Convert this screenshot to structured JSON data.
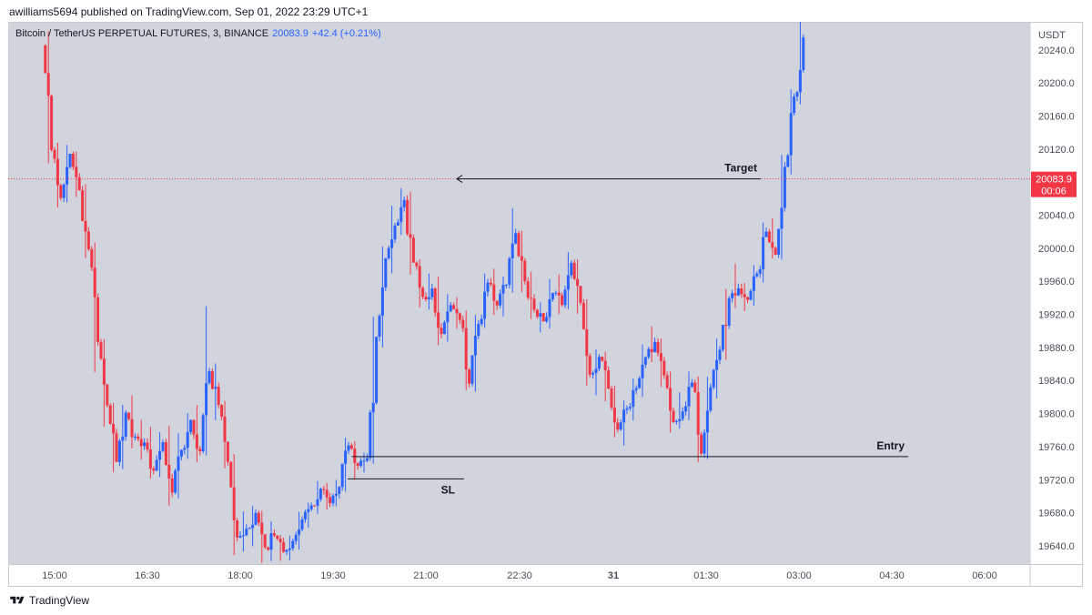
{
  "header": {
    "published_text": "awilliams5694 published on TradingView.com, Sep 01, 2022 23:29 UTC+1"
  },
  "legend": {
    "symbol_text": "Bitcoin / TetherUS PERPETUAL FUTURES, 3, BINANCE",
    "price": "20083.9",
    "change": "+42.4 (+0.21%)"
  },
  "footer": {
    "brand": "TradingView"
  },
  "colors": {
    "up": "#2962ff",
    "down": "#f23645",
    "plot_bg": "#d1d4dc",
    "current_price_tag": "#f23645"
  },
  "chart_data": {
    "type": "candlestick",
    "currency_label": "USDT",
    "x_ticks": [
      "15:00",
      "16:30",
      "18:00",
      "19:30",
      "21:00",
      "22:30",
      "31",
      "01:30",
      "03:00",
      "04:30",
      "06:00"
    ],
    "y_ticks": [
      19640.0,
      19680.0,
      19720.0,
      19760.0,
      19800.0,
      19840.0,
      19880.0,
      19920.0,
      19960.0,
      20000.0,
      20040.0,
      20080.0,
      20120.0,
      20160.0,
      20200.0,
      20240.0
    ],
    "ylim": [
      19619,
      20274
    ],
    "current_price": {
      "value": "20083.9",
      "countdown": "00:06"
    },
    "annotations": {
      "target": {
        "label": "Target",
        "price": 20084,
        "start": "03:00",
        "end": "21:30"
      },
      "entry": {
        "label": "Entry",
        "price": 19748,
        "start": "19:48",
        "end": "04:30"
      },
      "sl": {
        "label": "SL",
        "price": 19721,
        "start": "19:30",
        "end": "21:30"
      }
    },
    "interval": "3m",
    "candle_count": 216,
    "series": [
      {
        "x": "14:51",
        "o": 20245.4,
        "h": 20262.1,
        "l": 20102.8,
        "c": 20119.0
      },
      {
        "x": "15:00",
        "o": 20119.0,
        "h": 20127.7,
        "l": 20049.4,
        "c": 20060.9
      },
      {
        "x": "15:09",
        "o": 20060.9,
        "h": 20125.3,
        "l": 20055.4,
        "c": 20114.3
      },
      {
        "x": "15:18",
        "o": 20114.3,
        "h": 20117.0,
        "l": 20061.9,
        "c": 20070.2
      },
      {
        "x": "15:27",
        "o": 20070.2,
        "h": 20077.4,
        "l": 19988.3,
        "c": 19998.9
      },
      {
        "x": "15:36",
        "o": 19998.9,
        "h": 20007.1,
        "l": 19850.0,
        "c": 19886.6
      },
      {
        "x": "15:45",
        "o": 19886.6,
        "h": 19890.1,
        "l": 19784.3,
        "c": 19809.8
      },
      {
        "x": "15:54",
        "o": 19809.8,
        "h": 19812.8,
        "l": 19729.1,
        "c": 19741.5
      },
      {
        "x": "16:03",
        "o": 19741.5,
        "h": 19810.4,
        "l": 19732.8,
        "c": 19801.1
      },
      {
        "x": "16:12",
        "o": 19801.1,
        "h": 19822.1,
        "l": 19757.8,
        "c": 19772.1
      },
      {
        "x": "16:21",
        "o": 19772.1,
        "h": 19792.3,
        "l": 19744.2,
        "c": 19764.9
      },
      {
        "x": "16:30",
        "o": 19764.9,
        "h": 19784.1,
        "l": 19721.5,
        "c": 19730.9
      },
      {
        "x": "16:39",
        "o": 19730.9,
        "h": 19777.6,
        "l": 19723.1,
        "c": 19765.3
      },
      {
        "x": "16:48",
        "o": 19765.3,
        "h": 19785.3,
        "l": 19688.7,
        "c": 19704.4
      },
      {
        "x": "16:57",
        "o": 19704.4,
        "h": 19776.2,
        "l": 19697.5,
        "c": 19756.1
      },
      {
        "x": "17:06",
        "o": 19756.1,
        "h": 19800.6,
        "l": 19745.2,
        "c": 19792.2
      },
      {
        "x": "17:15",
        "o": 19792.2,
        "h": 19810.4,
        "l": 19741.0,
        "c": 19754.4
      },
      {
        "x": "17:24",
        "o": 19754.4,
        "h": 19929.9,
        "l": 19749.3,
        "c": 19851.4
      },
      {
        "x": "17:33",
        "o": 19851.4,
        "h": 19860.7,
        "l": 19792.1,
        "c": 19810.3
      },
      {
        "x": "17:42",
        "o": 19810.3,
        "h": 19815.3,
        "l": 19733.8,
        "c": 19741.6
      },
      {
        "x": "17:51",
        "o": 19741.6,
        "h": 19750.9,
        "l": 19628.8,
        "c": 19650.1
      },
      {
        "x": "18:00",
        "o": 19650.1,
        "h": 19681.5,
        "l": 19633.0,
        "c": 19660.6
      },
      {
        "x": "18:09",
        "o": 19660.6,
        "h": 19688.2,
        "l": 19639.5,
        "c": 19679.8
      },
      {
        "x": "18:18",
        "o": 19679.8,
        "h": 19682.4,
        "l": 19619.4,
        "c": 19638.1
      },
      {
        "x": "18:27",
        "o": 19638.1,
        "h": 19669.4,
        "l": 19621.5,
        "c": 19652.3
      },
      {
        "x": "18:36",
        "o": 19652.3,
        "h": 19652.9,
        "l": 19621.9,
        "c": 19632.7
      },
      {
        "x": "18:45",
        "o": 19632.7,
        "h": 19652.4,
        "l": 19622.5,
        "c": 19645.8
      },
      {
        "x": "18:54",
        "o": 19645.8,
        "h": 19681.2,
        "l": 19635.5,
        "c": 19671.8
      },
      {
        "x": "19:03",
        "o": 19671.8,
        "h": 19692.3,
        "l": 19661.6,
        "c": 19688.8
      },
      {
        "x": "19:12",
        "o": 19688.8,
        "h": 19718.4,
        "l": 19678.5,
        "c": 19709.0
      },
      {
        "x": "19:21",
        "o": 19709.0,
        "h": 19716.1,
        "l": 19683.7,
        "c": 19691.5
      },
      {
        "x": "19:30",
        "o": 19691.5,
        "h": 19719.6,
        "l": 19687.8,
        "c": 19711.2
      },
      {
        "x": "19:39",
        "o": 19711.2,
        "h": 19770.9,
        "l": 19705.5,
        "c": 19761.6
      },
      {
        "x": "19:48",
        "o": 19761.6,
        "h": 19766.6,
        "l": 19719.8,
        "c": 19736.7
      },
      {
        "x": "19:57",
        "o": 19736.7,
        "h": 19752.7,
        "l": 19728.8,
        "c": 19746.1
      },
      {
        "x": "20:06",
        "o": 19746.1,
        "h": 19917.2,
        "l": 19739.2,
        "c": 19892.9
      },
      {
        "x": "20:15",
        "o": 19892.9,
        "h": 20002.3,
        "l": 19880.1,
        "c": 19987.8
      },
      {
        "x": "20:24",
        "o": 19987.8,
        "h": 20051.6,
        "l": 19969.7,
        "c": 20027.5
      },
      {
        "x": "20:33",
        "o": 20027.5,
        "h": 20072.7,
        "l": 20016.1,
        "c": 20058.4
      },
      {
        "x": "20:42",
        "o": 20058.4,
        "h": 20068.5,
        "l": 19967.9,
        "c": 19982.6
      },
      {
        "x": "20:51",
        "o": 19982.6,
        "h": 19986.7,
        "l": 19928.5,
        "c": 19941.4
      },
      {
        "x": "21:00",
        "o": 19941.4,
        "h": 19969.4,
        "l": 19925.8,
        "c": 19951.3
      },
      {
        "x": "21:09",
        "o": 19951.3,
        "h": 19965.7,
        "l": 19882.9,
        "c": 19896.3
      },
      {
        "x": "21:18",
        "o": 19896.3,
        "h": 19944.8,
        "l": 19887.0,
        "c": 19931.2
      },
      {
        "x": "21:27",
        "o": 19931.2,
        "h": 19941.0,
        "l": 19902.5,
        "c": 19913.4
      },
      {
        "x": "21:36",
        "o": 19913.4,
        "h": 19924.5,
        "l": 19828.4,
        "c": 19836.2
      },
      {
        "x": "21:45",
        "o": 19836.2,
        "h": 19919.4,
        "l": 19826.6,
        "c": 19908.5
      },
      {
        "x": "21:54",
        "o": 19908.5,
        "h": 19969.3,
        "l": 19903.7,
        "c": 19958.3
      },
      {
        "x": "22:03",
        "o": 19958.3,
        "h": 19975.1,
        "l": 19919.4,
        "c": 19930.9
      },
      {
        "x": "22:12",
        "o": 19930.9,
        "h": 19965.8,
        "l": 19917.4,
        "c": 19956.0
      },
      {
        "x": "22:21",
        "o": 19956.0,
        "h": 20048.3,
        "l": 19946.3,
        "c": 20018.3
      },
      {
        "x": "22:30",
        "o": 20018.3,
        "h": 20021.1,
        "l": 19946.7,
        "c": 19960.2
      },
      {
        "x": "22:39",
        "o": 19960.2,
        "h": 19971.7,
        "l": 19914.4,
        "c": 19925.5
      },
      {
        "x": "22:48",
        "o": 19925.5,
        "h": 19934.8,
        "l": 19898.3,
        "c": 19911.4
      },
      {
        "x": "22:57",
        "o": 19911.4,
        "h": 19963.0,
        "l": 19902.7,
        "c": 19945.7
      },
      {
        "x": "23:06",
        "o": 19945.7,
        "h": 19968.5,
        "l": 19920.2,
        "c": 19931.3
      },
      {
        "x": "23:15",
        "o": 19931.3,
        "h": 19995.2,
        "l": 19926.3,
        "c": 19982.4
      },
      {
        "x": "23:24",
        "o": 19982.4,
        "h": 19986.7,
        "l": 19920.6,
        "c": 19934.1
      },
      {
        "x": "23:33",
        "o": 19934.1,
        "h": 19938.4,
        "l": 19833.9,
        "c": 19847.2
      },
      {
        "x": "23:42",
        "o": 19847.2,
        "h": 19877.5,
        "l": 19822.2,
        "c": 19868.6
      },
      {
        "x": "23:51",
        "o": 19868.6,
        "h": 19874.8,
        "l": 19814.8,
        "c": 19830.3
      },
      {
        "x": "00:00",
        "o": 19830.3,
        "h": 19833.8,
        "l": 19771.0,
        "c": 19780.6
      },
      {
        "x": "00:09",
        "o": 19780.6,
        "h": 19815.7,
        "l": 19761.1,
        "c": 19806.5
      },
      {
        "x": "00:18",
        "o": 19806.5,
        "h": 19842.8,
        "l": 19791.6,
        "c": 19830.8
      },
      {
        "x": "00:27",
        "o": 19830.8,
        "h": 19883.7,
        "l": 19820.0,
        "c": 19868.1
      },
      {
        "x": "00:36",
        "o": 19868.1,
        "h": 19905.7,
        "l": 19862.3,
        "c": 19886.7
      },
      {
        "x": "00:45",
        "o": 19886.7,
        "h": 19890.8,
        "l": 19832.2,
        "c": 19846.2
      },
      {
        "x": "00:54",
        "o": 19846.2,
        "h": 19850.8,
        "l": 19777.1,
        "c": 19789.6
      },
      {
        "x": "01:03",
        "o": 19789.6,
        "h": 19825.8,
        "l": 19781.9,
        "c": 19802.5
      },
      {
        "x": "01:12",
        "o": 19802.5,
        "h": 19850.9,
        "l": 19792.0,
        "c": 19837.4
      },
      {
        "x": "01:21",
        "o": 19837.4,
        "h": 19844.9,
        "l": 19741.2,
        "c": 19751.6
      },
      {
        "x": "01:30",
        "o": 19751.6,
        "h": 19844.5,
        "l": 19744.9,
        "c": 19831.7
      },
      {
        "x": "01:39",
        "o": 19831.7,
        "h": 19890.6,
        "l": 19818.4,
        "c": 19877.1
      },
      {
        "x": "01:48",
        "o": 19877.1,
        "h": 19950.7,
        "l": 19865.1,
        "c": 19939.6
      },
      {
        "x": "01:57",
        "o": 19939.6,
        "h": 19981.5,
        "l": 19927.6,
        "c": 19951.4
      },
      {
        "x": "02:06",
        "o": 19951.4,
        "h": 19958.2,
        "l": 19924.0,
        "c": 19937.6
      },
      {
        "x": "02:15",
        "o": 19937.6,
        "h": 19979.7,
        "l": 19930.5,
        "c": 19969.3
      },
      {
        "x": "02:24",
        "o": 19969.3,
        "h": 20031.4,
        "l": 19958.6,
        "c": 20020.2
      },
      {
        "x": "02:33",
        "o": 20020.2,
        "h": 20036.0,
        "l": 19987.7,
        "c": 19992.3
      },
      {
        "x": "02:42",
        "o": 19992.3,
        "h": 20113.2,
        "l": 19986.3,
        "c": 20098.6
      },
      {
        "x": "02:51",
        "o": 20098.6,
        "h": 20192.3,
        "l": 20089.5,
        "c": 20183.5
      },
      {
        "x": "03:00",
        "o": 20183.5,
        "h": 20279.9,
        "l": 20174.2,
        "c": 20255.2
      }
    ]
  }
}
